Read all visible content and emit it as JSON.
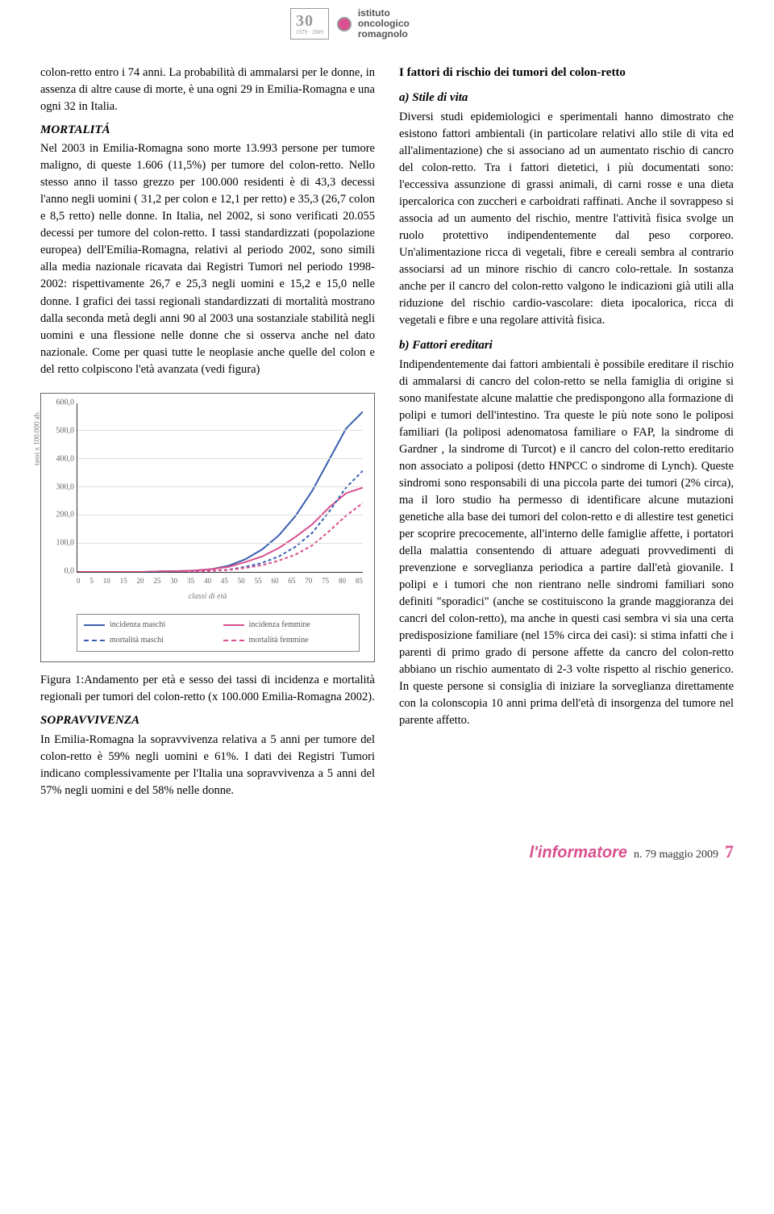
{
  "logo": {
    "thirty": "30",
    "years": "1979 · 2009",
    "name_l1": "istituto",
    "name_l2": "oncologico",
    "name_l3": "romagnolo"
  },
  "left": {
    "intro": "colon-retto entro i 74 anni. La probabilità di ammalarsi per le donne, in assenza di altre cause di morte, è una ogni 29 in Emilia-Romagna e una ogni 32 in Italia.",
    "mortalita_head": "MORTALITÁ",
    "mortalita_body": "Nel 2003 in Emilia-Romagna sono morte 13.993 persone per tumore maligno, di queste 1.606 (11,5%) per tumore del colon-retto. Nello stesso anno il tasso grezzo per 100.000 residenti è di 43,3 decessi l'anno negli uomini ( 31,2 per colon e 12,1 per retto) e 35,3 (26,7 colon e 8,5 retto) nelle donne. In Italia, nel 2002, si sono verificati 20.055 decessi per tumore del colon-retto. I tassi standardizzati (popolazione europea) dell'Emilia-Romagna, relativi al periodo 2002, sono simili alla media nazionale ricavata dai Registri Tumori nel periodo 1998-2002: rispettivamente 26,7 e 25,3 negli uomini e 15,2 e 15,0 nelle donne. I grafici dei tassi regionali standardizzati di mortalità mostrano dalla seconda metà degli anni 90 al 2003 una sostanziale stabilità negli uomini e una flessione nelle donne che si osserva anche nel dato nazionale. Come per quasi tutte le neoplasie anche quelle del colon e del retto colpiscono l'età avanzata (vedi figura)",
    "fig_caption": "Figura 1:Andamento per età e sesso dei tassi di incidenza e mortalità regionali per tumori del colon-retto (x 100.000 Emilia-Romagna 2002).",
    "sopravvivenza_head": "SOPRAVVIVENZA",
    "sopravvivenza_body": "In Emilia-Romagna la sopravvivenza relativa a 5 anni per tumore del colon-retto è 59% negli uomini e 61%. I dati dei Registri Tumori indicano complessivamente per l'Italia una sopravvivenza a 5 anni del 57% negli uomini e del 58% nelle donne."
  },
  "right": {
    "risk_title": "I fattori di rischio dei tumori del colon-retto",
    "a_head": "a) Stile di vita",
    "a_body": "Diversi studi epidemiologici e sperimentali hanno dimostrato che esistono fattori ambientali (in particolare relativi allo stile di vita ed all'alimentazione) che si associano ad un aumentato rischio di cancro del colon-retto. Tra i fattori dietetici, i più documentati sono: l'eccessiva assunzione di grassi animali, di carni rosse e una dieta ipercalorica con zuccheri e carboidrati raffinati. Anche il sovrappeso si associa ad un aumento del rischio, mentre l'attività fisica svolge un ruolo protettivo indipendentemente dal peso corporeo. Un'alimentazione ricca di vegetali, fibre e cereali sembra al contrario associarsi ad un minore rischio di cancro colo-rettale. In sostanza anche per il cancro del colon-retto valgono le indicazioni già utili alla riduzione del rischio cardio-vascolare: dieta ipocalorica, ricca di vegetali e fibre e una regolare attività fisica.",
    "b_head": "b) Fattori ereditari",
    "b_body": "Indipendentemente dai fattori ambientali è possibile ereditare il rischio di ammalarsi di cancro del colon-retto se nella famiglia di origine si sono manifestate alcune malattie che predispongono alla formazione di polipi e tumori dell'intestino. Tra queste le più note sono le poliposi familiari (la poliposi adenomatosa familiare o FAP, la sindrome di Gardner , la sindrome di Turcot) e il cancro del colon-retto ereditario non associato a poliposi (detto HNPCC o sindrome di Lynch). Queste sindromi sono responsabili di una piccola parte dei tumori (2% circa), ma il loro studio ha permesso di identificare alcune mutazioni genetiche alla base dei tumori del colon-retto e di allestire test genetici per scoprire precocemente, all'interno delle famiglie affette, i portatori della malattia consentendo di attuare adeguati provvedimenti di prevenzione e sorveglianza periodica a partire dall'età giovanile. I polipi e i tumori che non rientrano nelle sindromi familiari sono definiti \"sporadici\" (anche se costituiscono la grande maggioranza dei cancri del colon-retto), ma anche in questi casi sembra vi sia una certa predisposizione familiare (nel 15% circa dei casi): si stima infatti che i parenti di primo grado di persone affette da cancro del colon-retto abbiano un rischio aumentato di 2-3 volte rispetto al rischio generico. In queste persone si consiglia di iniziare la sorveglianza direttamente con la colonscopia 10 anni prima dell'età di insorgenza del tumore nel parente affetto."
  },
  "chart": {
    "type": "line",
    "ylabel": "tassi x 100.000 ab.",
    "xlabel": "classi di età",
    "ylim": [
      0,
      600
    ],
    "yticks": [
      0,
      100,
      200,
      300,
      400,
      500,
      600
    ],
    "ytick_labels": [
      "0,0",
      "100,0",
      "200,0",
      "300,0",
      "400,0",
      "500,0",
      "600,0"
    ],
    "xticks": [
      "0",
      "5",
      "10",
      "15",
      "20",
      "25",
      "30",
      "35",
      "40",
      "45",
      "50",
      "55",
      "60",
      "65",
      "70",
      "75",
      "80",
      "85"
    ],
    "grid_color": "#dddddd",
    "axis_color": "#333333",
    "series": [
      {
        "name": "incidenza maschi",
        "color": "#3a5fb0",
        "dash": "none",
        "width": 2,
        "values": [
          0,
          0,
          0,
          0,
          0,
          2,
          3,
          5,
          10,
          22,
          45,
          80,
          130,
          200,
          290,
          400,
          510,
          570
        ]
      },
      {
        "name": "incidenza femmine",
        "color": "#d94f8f",
        "dash": "none",
        "width": 2,
        "values": [
          0,
          0,
          0,
          0,
          0,
          2,
          3,
          5,
          10,
          18,
          35,
          55,
          85,
          125,
          170,
          230,
          280,
          300
        ]
      },
      {
        "name": "mortalità maschi",
        "color": "#3a5fb0",
        "dash": "4,3",
        "width": 2,
        "values": [
          0,
          0,
          0,
          0,
          0,
          1,
          1,
          2,
          4,
          8,
          18,
          32,
          55,
          90,
          140,
          215,
          300,
          360
        ]
      },
      {
        "name": "mortalità femmine",
        "color": "#d94f8f",
        "dash": "4,3",
        "width": 2,
        "values": [
          0,
          0,
          0,
          0,
          0,
          1,
          1,
          2,
          4,
          7,
          14,
          24,
          40,
          62,
          95,
          145,
          200,
          245
        ]
      }
    ],
    "legend_labels": {
      "inc_m": "incidenza maschi",
      "inc_f": "incidenza femmine",
      "mor_m": "mortalità maschi",
      "mor_f": "mortalità femmine"
    }
  },
  "footer": {
    "brand": "l'informatore",
    "issue": "n. 79 maggio 2009",
    "page": "7"
  },
  "colors": {
    "accent": "#d94f8f",
    "blue": "#3a5fb0",
    "text": "#000000"
  }
}
